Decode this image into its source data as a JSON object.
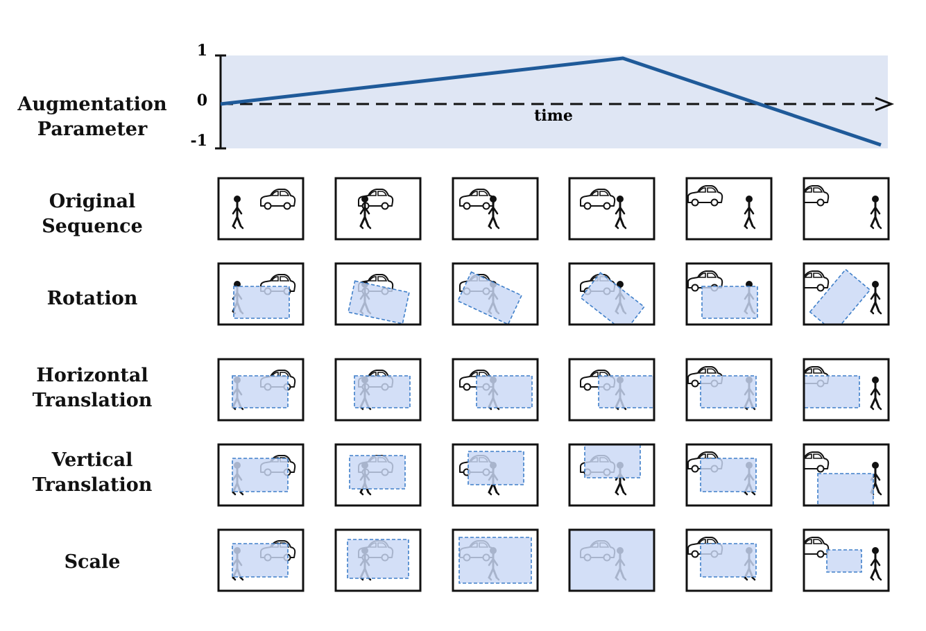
{
  "row_labels": {
    "param": [
      "Augmentation",
      "Parameter"
    ],
    "original": [
      "Original",
      "Sequence"
    ],
    "rotation": [
      "Rotation"
    ],
    "htrans": [
      "Horizontal",
      "Translation"
    ],
    "vtrans": [
      "Vertical",
      "Translation"
    ],
    "scale": [
      "Scale"
    ]
  },
  "parameter_plot": {
    "y_ticks": [
      "1",
      "0",
      "-1"
    ],
    "x_label": "time",
    "line_color": "#1f5a99",
    "band_color": "#dfe6f4",
    "shape": "rises linearly from 0 to about 1, then falls linearly to -1"
  },
  "colors": {
    "augment_fill": "#c9d8f5",
    "augment_border": "#3f7fc9",
    "frame_border": "#111111"
  },
  "icons": {
    "car": "car-icon",
    "person": "person-icon"
  },
  "frame_count": 6
}
